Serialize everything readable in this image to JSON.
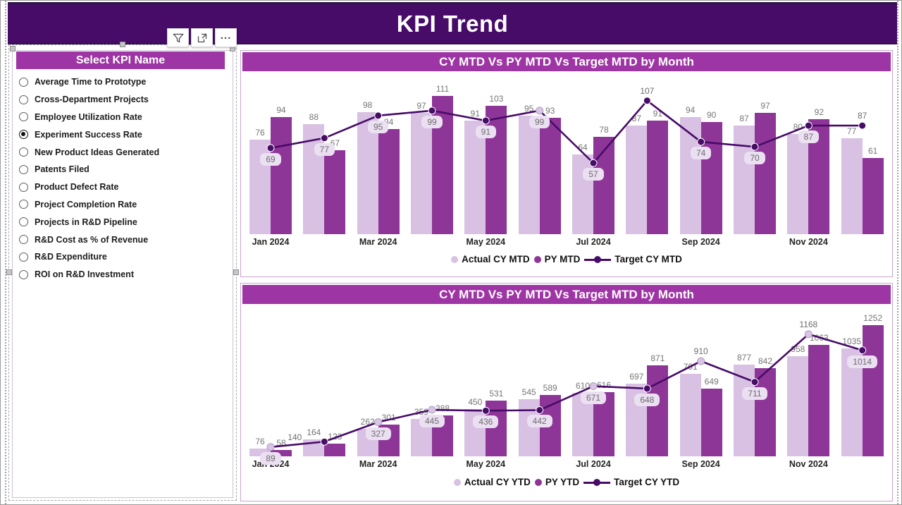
{
  "header": {
    "title": "KPI Trend"
  },
  "toolbar": {
    "more_label": "...",
    "icons": [
      "filter-icon",
      "focus-mode-icon",
      "more-options-icon"
    ]
  },
  "slicer": {
    "title": "Select KPI Name",
    "selected": "Experiment Success Rate",
    "options": [
      "Average Time to Prototype",
      "Cross-Department Projects",
      "Employee Utilization Rate",
      "Experiment Success Rate",
      "New Product Ideas Generated",
      "Patents Filed",
      "Product Defect Rate",
      "Project Completion Rate",
      "Projects in R&D Pipeline",
      "R&D Cost as % of Revenue",
      "R&D Expenditure",
      "ROI on R&D Investment"
    ]
  },
  "colors": {
    "header_bg": "#470b68",
    "title_bar_bg": "#9e35a4",
    "actual_bar": "#d8c1e2",
    "py_bar": "#8e3598",
    "target_line": "#470b68",
    "light_marker": "#d9c4e6",
    "boxed_label_bg": "#ebdff2",
    "label_text": "#767676"
  },
  "chart_data": [
    {
      "type": "combo: clustered column + line",
      "title": "CY MTD Vs PY MTD Vs Target MTD by Month",
      "categories": [
        "Jan 2024",
        "Feb 2024",
        "Mar 2024",
        "Apr 2024",
        "May 2024",
        "Jun 2024",
        "Jul 2024",
        "Aug 2024",
        "Sep 2024",
        "Oct 2024",
        "Nov 2024",
        "Dec 2024"
      ],
      "x_ticks_shown": [
        "Jan 2024",
        "Mar 2024",
        "May 2024",
        "Jul 2024",
        "Sep 2024",
        "Nov 2024"
      ],
      "series": [
        {
          "name": "Actual CY MTD",
          "render": "bar",
          "values": [
            76,
            88,
            98,
            97,
            91,
            95,
            64,
            87,
            94,
            87,
            80,
            77
          ]
        },
        {
          "name": "PY MTD",
          "render": "bar",
          "values": [
            94,
            67,
            84,
            111,
            103,
            93,
            78,
            91,
            90,
            97,
            92,
            61
          ]
        },
        {
          "name": "Target CY MTD",
          "render": "line",
          "values": [
            69,
            77,
            95,
            99,
            91,
            99,
            57,
            107,
            74,
            70,
            87,
            87
          ]
        }
      ],
      "target_label_boxed": [
        true,
        true,
        true,
        true,
        true,
        true,
        true,
        false,
        true,
        true,
        true,
        false
      ],
      "marker_light": [
        false,
        false,
        false,
        false,
        false,
        true,
        false,
        false,
        false,
        false,
        false,
        false
      ],
      "target_label_dx": [
        0,
        0,
        0,
        0,
        0,
        0,
        0,
        0,
        0,
        0,
        0,
        0
      ],
      "target_label_dy": [
        0,
        0,
        0,
        0,
        0,
        0,
        0,
        0,
        0,
        0,
        0,
        0
      ],
      "ylim": [
        0,
        130
      ],
      "grid": false,
      "legend_position": "bottom"
    },
    {
      "type": "combo: clustered column + line",
      "title": "CY MTD Vs PY MTD Vs Target MTD by Month",
      "categories": [
        "Jan 2024",
        "Feb 2024",
        "Mar 2024",
        "Apr 2024",
        "May 2024",
        "Jun 2024",
        "Jul 2024",
        "Aug 2024",
        "Sep 2024",
        "Oct 2024",
        "Nov 2024",
        "Dec 2024"
      ],
      "x_ticks_shown": [
        "Jan 2024",
        "Mar 2024",
        "May 2024",
        "Jul 2024",
        "Sep 2024",
        "Nov 2024"
      ],
      "series": [
        {
          "name": "Actual CY YTD",
          "render": "bar",
          "values": [
            76,
            164,
            262,
            359,
            450,
            545,
            610,
            697,
            791,
            877,
            958,
            1035
          ]
        },
        {
          "name": "PY YTD",
          "render": "bar",
          "values": [
            58,
            123,
            301,
            388,
            531,
            589,
            616,
            871,
            649,
            842,
            1063,
            1252
          ]
        },
        {
          "name": "Target CY YTD",
          "render": "line",
          "values": [
            89,
            140,
            327,
            445,
            436,
            442,
            671,
            648,
            910,
            711,
            1168,
            1014
          ]
        }
      ],
      "target_label_boxed": [
        true,
        false,
        true,
        true,
        true,
        true,
        true,
        true,
        false,
        true,
        false,
        true
      ],
      "marker_light": [
        true,
        false,
        true,
        true,
        false,
        false,
        true,
        false,
        true,
        false,
        true,
        false
      ],
      "target_label_dx": [
        0,
        -42,
        0,
        0,
        0,
        0,
        0,
        0,
        0,
        0,
        0,
        0
      ],
      "target_label_dy": [
        0,
        8,
        0,
        0,
        0,
        0,
        0,
        0,
        0,
        0,
        0,
        0
      ],
      "ylim": [
        0,
        1450
      ],
      "grid": false,
      "legend_position": "bottom"
    }
  ]
}
